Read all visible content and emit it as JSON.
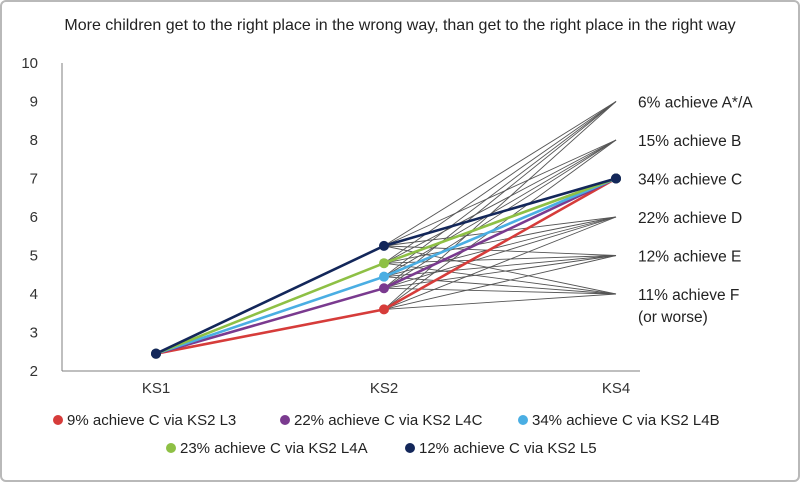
{
  "chart_data": {
    "type": "line",
    "title": "More children get to the right place in the wrong way, than get to the right place in the right way",
    "categories": [
      "KS1",
      "KS2",
      "KS4"
    ],
    "ylim": [
      2,
      10
    ],
    "yticks": [
      2,
      3,
      4,
      5,
      6,
      7,
      8,
      9,
      10
    ],
    "grid": false,
    "series": [
      {
        "name": "9% achieve C via KS2 L3",
        "color": "#d63c3a",
        "values": [
          2.45,
          3.6,
          7
        ]
      },
      {
        "name": "22% achieve C via KS2 L4C",
        "color": "#7a3a8f",
        "values": [
          2.45,
          4.15,
          7
        ]
      },
      {
        "name": "34% achieve C via KS2 L4B",
        "color": "#4aaee3",
        "values": [
          2.45,
          4.45,
          7
        ]
      },
      {
        "name": "23% achieve C via KS2 L4A",
        "color": "#8ec045",
        "values": [
          2.45,
          4.8,
          7
        ]
      },
      {
        "name": "12% achieve C via KS2 L5",
        "color": "#13275a",
        "values": [
          2.45,
          5.25,
          7
        ]
      }
    ],
    "fan_lines": {
      "ks2_levels": [
        3.6,
        4.15,
        4.45,
        4.8,
        5.25
      ],
      "ks4_levels": [
        4,
        5,
        6,
        7,
        8,
        9
      ],
      "color": "#555555"
    },
    "annotations": [
      {
        "lines": [
          "6% achieve A*/A"
        ],
        "y": 9
      },
      {
        "lines": [
          "15% achieve B"
        ],
        "y": 8
      },
      {
        "lines": [
          "34% achieve C"
        ],
        "y": 7
      },
      {
        "lines": [
          "22% achieve D"
        ],
        "y": 6
      },
      {
        "lines": [
          "12% achieve E"
        ],
        "y": 5
      },
      {
        "lines": [
          "11% achieve F",
          "(or worse)"
        ],
        "y": 4
      }
    ],
    "legend_position": "bottom"
  }
}
